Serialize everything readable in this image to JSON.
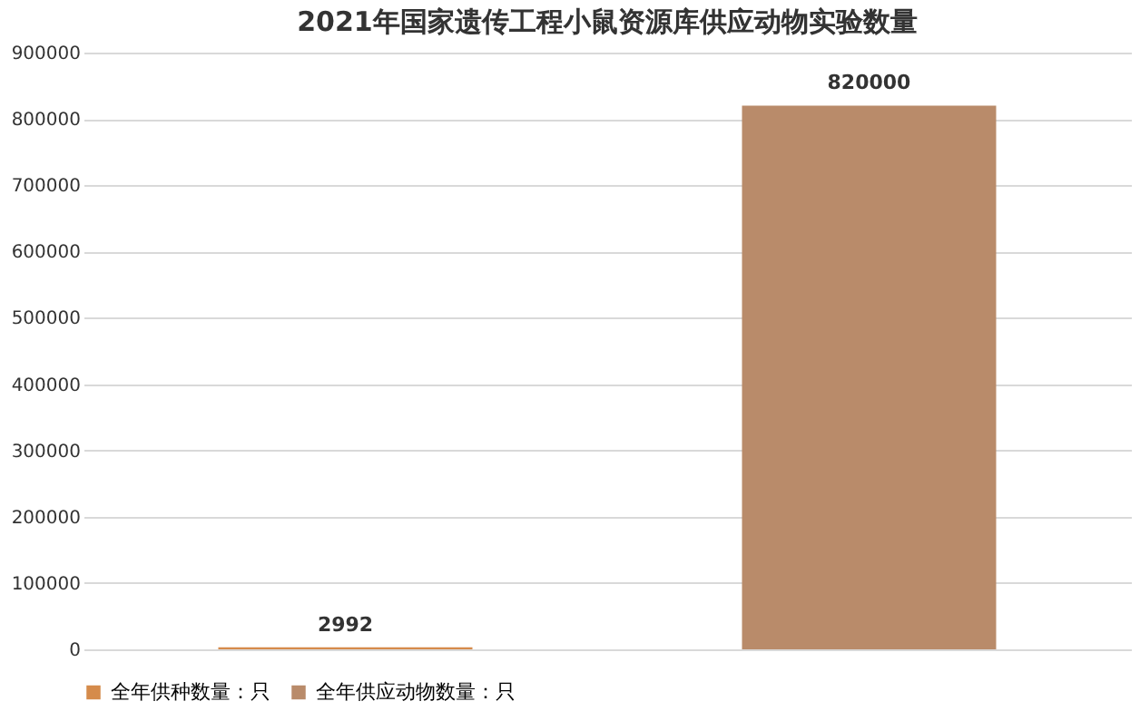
{
  "chart_data": {
    "type": "bar",
    "title": "2021年国家遗传工程小鼠资源库供应动物实验数量",
    "categories": [
      null
    ],
    "series": [
      {
        "name": "全年供种数量：只",
        "color": "#d58b4b",
        "values": [
          2992
        ]
      },
      {
        "name": "全年供应动物数量：只",
        "color": "#b98b6a",
        "values": [
          820000
        ]
      }
    ],
    "ylim": [
      0,
      900000
    ],
    "yticks": [
      0,
      100000,
      200000,
      300000,
      400000,
      500000,
      600000,
      700000,
      800000,
      900000
    ],
    "grid": "y",
    "legend": "bottom",
    "data_labels": true,
    "tick_labels": "y"
  }
}
